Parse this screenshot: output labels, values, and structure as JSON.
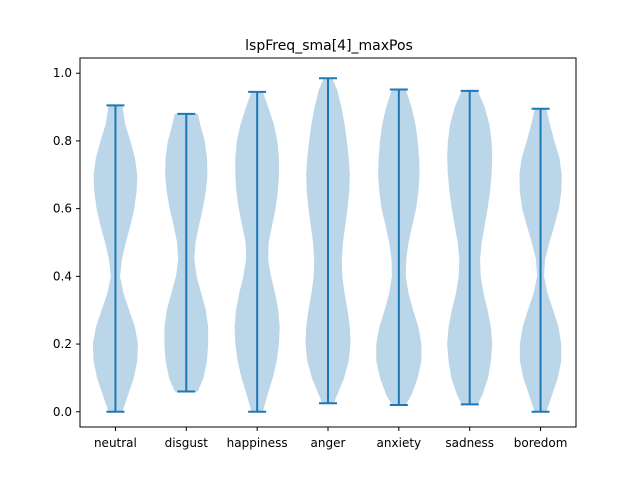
{
  "chart_data": {
    "type": "violin",
    "title": "lspFreq_sma[4]_maxPos",
    "xlabel": "",
    "ylabel": "",
    "ylim": [
      -0.045,
      1.045
    ],
    "yticks": [
      0.0,
      0.2,
      0.4,
      0.6,
      0.8,
      1.0
    ],
    "ytick_labels": [
      "0.0",
      "0.2",
      "0.4",
      "0.6",
      "0.8",
      "1.0"
    ],
    "categories": [
      "neutral",
      "disgust",
      "happiness",
      "anger",
      "anxiety",
      "sadness",
      "boredom"
    ],
    "series": [
      {
        "category": "neutral",
        "min": 0.0,
        "max": 0.905,
        "density": [
          [
            0.0,
            0.3
          ],
          [
            0.05,
            0.55
          ],
          [
            0.1,
            0.8
          ],
          [
            0.15,
            0.95
          ],
          [
            0.2,
            0.98
          ],
          [
            0.25,
            0.85
          ],
          [
            0.3,
            0.6
          ],
          [
            0.35,
            0.35
          ],
          [
            0.4,
            0.2
          ],
          [
            0.45,
            0.28
          ],
          [
            0.5,
            0.45
          ],
          [
            0.55,
            0.65
          ],
          [
            0.6,
            0.82
          ],
          [
            0.65,
            0.92
          ],
          [
            0.7,
            0.95
          ],
          [
            0.75,
            0.85
          ],
          [
            0.8,
            0.65
          ],
          [
            0.85,
            0.42
          ],
          [
            0.905,
            0.3
          ]
        ]
      },
      {
        "category": "disgust",
        "min": 0.06,
        "max": 0.88,
        "density": [
          [
            0.06,
            0.5
          ],
          [
            0.1,
            0.75
          ],
          [
            0.15,
            0.9
          ],
          [
            0.2,
            0.95
          ],
          [
            0.25,
            0.95
          ],
          [
            0.3,
            0.85
          ],
          [
            0.35,
            0.65
          ],
          [
            0.4,
            0.45
          ],
          [
            0.45,
            0.35
          ],
          [
            0.5,
            0.4
          ],
          [
            0.55,
            0.55
          ],
          [
            0.6,
            0.72
          ],
          [
            0.65,
            0.85
          ],
          [
            0.7,
            0.92
          ],
          [
            0.75,
            0.9
          ],
          [
            0.8,
            0.8
          ],
          [
            0.85,
            0.6
          ],
          [
            0.88,
            0.5
          ]
        ]
      },
      {
        "category": "happiness",
        "min": 0.0,
        "max": 0.945,
        "density": [
          [
            0.0,
            0.25
          ],
          [
            0.05,
            0.45
          ],
          [
            0.1,
            0.68
          ],
          [
            0.15,
            0.85
          ],
          [
            0.2,
            0.95
          ],
          [
            0.25,
            0.98
          ],
          [
            0.3,
            0.92
          ],
          [
            0.35,
            0.78
          ],
          [
            0.4,
            0.6
          ],
          [
            0.45,
            0.48
          ],
          [
            0.5,
            0.5
          ],
          [
            0.55,
            0.65
          ],
          [
            0.6,
            0.8
          ],
          [
            0.65,
            0.9
          ],
          [
            0.7,
            0.95
          ],
          [
            0.75,
            0.95
          ],
          [
            0.8,
            0.88
          ],
          [
            0.85,
            0.72
          ],
          [
            0.9,
            0.48
          ],
          [
            0.945,
            0.25
          ]
        ]
      },
      {
        "category": "anger",
        "min": 0.025,
        "max": 0.985,
        "density": [
          [
            0.025,
            0.25
          ],
          [
            0.05,
            0.4
          ],
          [
            0.1,
            0.7
          ],
          [
            0.15,
            0.9
          ],
          [
            0.2,
            0.98
          ],
          [
            0.25,
            0.95
          ],
          [
            0.3,
            0.85
          ],
          [
            0.35,
            0.72
          ],
          [
            0.4,
            0.62
          ],
          [
            0.45,
            0.6
          ],
          [
            0.5,
            0.65
          ],
          [
            0.55,
            0.75
          ],
          [
            0.6,
            0.85
          ],
          [
            0.65,
            0.92
          ],
          [
            0.7,
            0.95
          ],
          [
            0.75,
            0.9
          ],
          [
            0.8,
            0.82
          ],
          [
            0.85,
            0.72
          ],
          [
            0.9,
            0.58
          ],
          [
            0.95,
            0.4
          ],
          [
            0.985,
            0.18
          ]
        ]
      },
      {
        "category": "anxiety",
        "min": 0.02,
        "max": 0.952,
        "density": [
          [
            0.02,
            0.3
          ],
          [
            0.05,
            0.55
          ],
          [
            0.1,
            0.82
          ],
          [
            0.15,
            0.98
          ],
          [
            0.2,
            0.98
          ],
          [
            0.25,
            0.85
          ],
          [
            0.3,
            0.62
          ],
          [
            0.35,
            0.42
          ],
          [
            0.4,
            0.3
          ],
          [
            0.45,
            0.32
          ],
          [
            0.5,
            0.42
          ],
          [
            0.55,
            0.58
          ],
          [
            0.6,
            0.75
          ],
          [
            0.65,
            0.85
          ],
          [
            0.7,
            0.9
          ],
          [
            0.75,
            0.88
          ],
          [
            0.8,
            0.82
          ],
          [
            0.85,
            0.72
          ],
          [
            0.9,
            0.55
          ],
          [
            0.952,
            0.3
          ]
        ]
      },
      {
        "category": "sadness",
        "min": 0.022,
        "max": 0.948,
        "density": [
          [
            0.022,
            0.35
          ],
          [
            0.05,
            0.55
          ],
          [
            0.1,
            0.8
          ],
          [
            0.15,
            0.92
          ],
          [
            0.2,
            0.98
          ],
          [
            0.25,
            0.92
          ],
          [
            0.3,
            0.78
          ],
          [
            0.35,
            0.6
          ],
          [
            0.4,
            0.48
          ],
          [
            0.45,
            0.45
          ],
          [
            0.5,
            0.52
          ],
          [
            0.55,
            0.65
          ],
          [
            0.6,
            0.78
          ],
          [
            0.65,
            0.88
          ],
          [
            0.7,
            0.95
          ],
          [
            0.75,
            0.98
          ],
          [
            0.8,
            0.95
          ],
          [
            0.85,
            0.85
          ],
          [
            0.9,
            0.65
          ],
          [
            0.948,
            0.35
          ]
        ]
      },
      {
        "category": "boredom",
        "min": 0.0,
        "max": 0.895,
        "density": [
          [
            0.0,
            0.25
          ],
          [
            0.05,
            0.5
          ],
          [
            0.1,
            0.75
          ],
          [
            0.15,
            0.9
          ],
          [
            0.2,
            0.9
          ],
          [
            0.25,
            0.78
          ],
          [
            0.3,
            0.55
          ],
          [
            0.35,
            0.3
          ],
          [
            0.4,
            0.15
          ],
          [
            0.45,
            0.2
          ],
          [
            0.5,
            0.38
          ],
          [
            0.55,
            0.6
          ],
          [
            0.6,
            0.8
          ],
          [
            0.65,
            0.9
          ],
          [
            0.7,
            0.92
          ],
          [
            0.75,
            0.82
          ],
          [
            0.8,
            0.6
          ],
          [
            0.85,
            0.4
          ],
          [
            0.895,
            0.25
          ]
        ]
      }
    ],
    "color": "#1f77b4",
    "grid": false,
    "legend": "none"
  }
}
